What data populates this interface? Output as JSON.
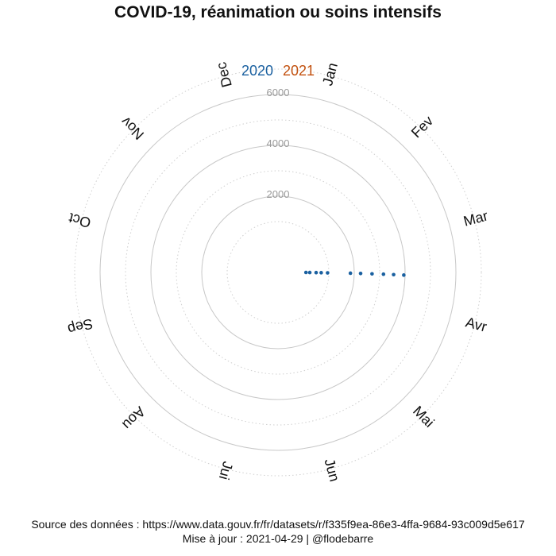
{
  "title": "COVID-19, réanimation ou soins intensifs",
  "legend": {
    "items": [
      {
        "label": "2020",
        "color": "#1a60a0"
      },
      {
        "label": "2021",
        "color": "#c2510f"
      }
    ]
  },
  "footer": {
    "source": "Source des données : https://www.data.gouv.fr/fr/datasets/r/f335f9ea-86e3-4ffa-9684-93c009d5e617",
    "update": "Mise à jour : 2021-04-29 | @flodebarre"
  },
  "chart_data": {
    "type": "scatter",
    "coordinate_system": "polar",
    "angular_axis": {
      "labels": [
        "Jan",
        "Fev",
        "Mar",
        "Avr",
        "Mai",
        "Jun",
        "Jui",
        "Aou",
        "Sep",
        "Oct",
        "Nov",
        "Dec"
      ]
    },
    "radial_axis": {
      "ticks": [
        2000,
        4000,
        6000
      ],
      "labels": [
        "2000",
        "4000",
        "6000"
      ],
      "range": [
        0,
        7000
      ]
    },
    "grid": true,
    "legend_position": "top",
    "series": [
      {
        "name": "2020",
        "color": "#1a60a0",
        "points": [
          {
            "month": "Mar",
            "value": 100
          },
          {
            "month": "Mar",
            "value": 250
          },
          {
            "month": "Mar",
            "value": 500
          },
          {
            "month": "Mar",
            "value": 700
          },
          {
            "month": "Mar",
            "value": 950
          },
          {
            "month": "Mar",
            "value": 1850
          },
          {
            "month": "Mar",
            "value": 2250
          },
          {
            "month": "Mar",
            "value": 2700
          },
          {
            "month": "Mar",
            "value": 3150
          },
          {
            "month": "Mar",
            "value": 3550
          },
          {
            "month": "Mar",
            "value": 3950
          }
        ]
      },
      {
        "name": "2021",
        "color": "#c2510f",
        "points": []
      }
    ]
  }
}
